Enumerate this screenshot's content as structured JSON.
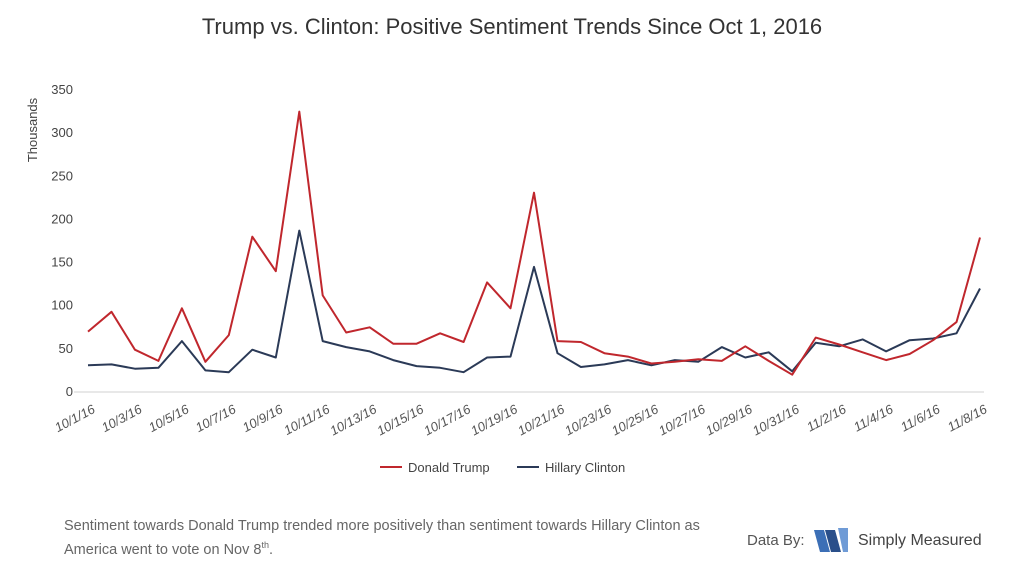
{
  "chart_data": {
    "type": "line",
    "title": "Trump vs. Clinton: Positive Sentiment Trends Since Oct 1, 2016",
    "ylabel": "Thousands",
    "xlabel": "",
    "ylim": [
      0,
      350
    ],
    "yticks": [
      0,
      50,
      100,
      150,
      200,
      250,
      300,
      350
    ],
    "grid": false,
    "legend_position": "bottom-center",
    "categories": [
      "10/1/16",
      "10/2/16",
      "10/3/16",
      "10/4/16",
      "10/5/16",
      "10/6/16",
      "10/7/16",
      "10/8/16",
      "10/9/16",
      "10/10/16",
      "10/11/16",
      "10/12/16",
      "10/13/16",
      "10/14/16",
      "10/15/16",
      "10/16/16",
      "10/17/16",
      "10/18/16",
      "10/19/16",
      "10/20/16",
      "10/21/16",
      "10/22/16",
      "10/23/16",
      "10/24/16",
      "10/25/16",
      "10/26/16",
      "10/27/16",
      "10/28/16",
      "10/29/16",
      "10/30/16",
      "10/31/16",
      "11/1/16",
      "11/2/16",
      "11/3/16",
      "11/4/16",
      "11/5/16",
      "11/6/16",
      "11/7/16",
      "11/8/16"
    ],
    "tick_labels": [
      "10/1/16",
      "10/3/16",
      "10/5/16",
      "10/7/16",
      "10/9/16",
      "10/11/16",
      "10/13/16",
      "10/15/16",
      "10/17/16",
      "10/19/16",
      "10/21/16",
      "10/23/16",
      "10/25/16",
      "10/27/16",
      "10/29/16",
      "10/31/16",
      "11/2/16",
      "11/4/16",
      "11/6/16",
      "11/8/16"
    ],
    "series": [
      {
        "name": "Donald Trump",
        "color": "#c0272d",
        "values": [
          70,
          93,
          49,
          36,
          97,
          35,
          66,
          180,
          140,
          325,
          112,
          69,
          75,
          56,
          56,
          68,
          58,
          127,
          97,
          231,
          59,
          58,
          45,
          41,
          33,
          35,
          38,
          36,
          53,
          36,
          20,
          63,
          55,
          46,
          37,
          44,
          60,
          81,
          179
        ]
      },
      {
        "name": "Hillary Clinton",
        "color": "#2b3a57",
        "values": [
          31,
          32,
          27,
          28,
          59,
          25,
          23,
          49,
          40,
          187,
          59,
          52,
          47,
          37,
          30,
          28,
          23,
          40,
          41,
          145,
          45,
          29,
          32,
          37,
          31,
          37,
          35,
          52,
          40,
          46,
          24,
          57,
          53,
          61,
          47,
          60,
          62,
          68,
          120
        ]
      }
    ]
  },
  "caption": {
    "text": "Sentiment towards Donald Trump trended more positively than sentiment towards Hillary Clinton as America went to vote on Nov 8",
    "superscript": "th",
    "end": "."
  },
  "credit": {
    "label": "Data By:",
    "brand": "Simply Measured",
    "logo_colors": [
      "#3c6fb6",
      "#2a4f8a",
      "#6f9bd6"
    ]
  }
}
